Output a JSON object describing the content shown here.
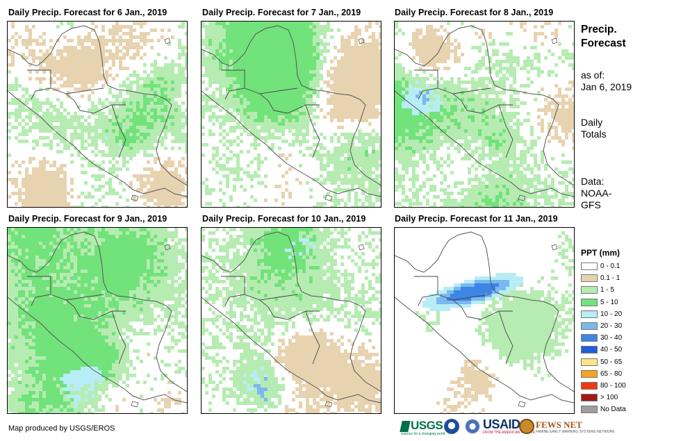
{
  "panels": [
    {
      "title": "Daily Precip. Forecast for 6 Jan., 2019"
    },
    {
      "title": "Daily Precip. Forecast for 7 Jan., 2019"
    },
    {
      "title": "Daily Precip. Forecast for 8 Jan., 2019"
    },
    {
      "title": "Daily Precip. Forecast for 9 Jan., 2019"
    },
    {
      "title": "Daily Precip. Forecast for 10 Jan., 2019"
    },
    {
      "title": "Daily Precip. Forecast for 11 Jan., 2019"
    }
  ],
  "side": {
    "title_line1": "Precip.",
    "title_line2": "Forecast",
    "asof_line1": "as of:",
    "asof_line2": "Jan 6, 2019",
    "totals_line1": "Daily",
    "totals_line2": "Totals",
    "source_line1": "Data:",
    "source_line2": "NOAA-",
    "source_line3": "GFS"
  },
  "legend": {
    "title": "PPT (mm)",
    "classes": [
      {
        "label": "0 - 0.1",
        "color": "#ffffff"
      },
      {
        "label": "0.1 - 1",
        "color": "#e8d3b0"
      },
      {
        "label": "1 - 5",
        "color": "#b6ecb2"
      },
      {
        "label": "5 - 10",
        "color": "#72e27a"
      },
      {
        "label": "10 - 20",
        "color": "#b8edf6"
      },
      {
        "label": "20 - 30",
        "color": "#7ab8f0"
      },
      {
        "label": "30 - 40",
        "color": "#3d86e6"
      },
      {
        "label": "40 - 50",
        "color": "#1f5fd9"
      },
      {
        "label": "50 - 65",
        "color": "#fde48a"
      },
      {
        "label": "65 - 80",
        "color": "#f7a321"
      },
      {
        "label": "80 - 100",
        "color": "#ef3a12"
      },
      {
        "label": "> 100",
        "color": "#a51818"
      },
      {
        "label": "No Data",
        "color": "#9e9e9e"
      }
    ]
  },
  "footer": {
    "credit": "Map produced by USGS/EROS",
    "logo_usgs": "USGS",
    "logo_usgs_tag": "science for a changing world",
    "logo_usaid": "USAID",
    "logo_usaid_tag": "FROM THE AMERICAN PEOPLE",
    "logo_fews": "FEWS NET",
    "logo_fews_tag": "FAMINE EARLY WARNING SYSTEMS NETWORK"
  }
}
